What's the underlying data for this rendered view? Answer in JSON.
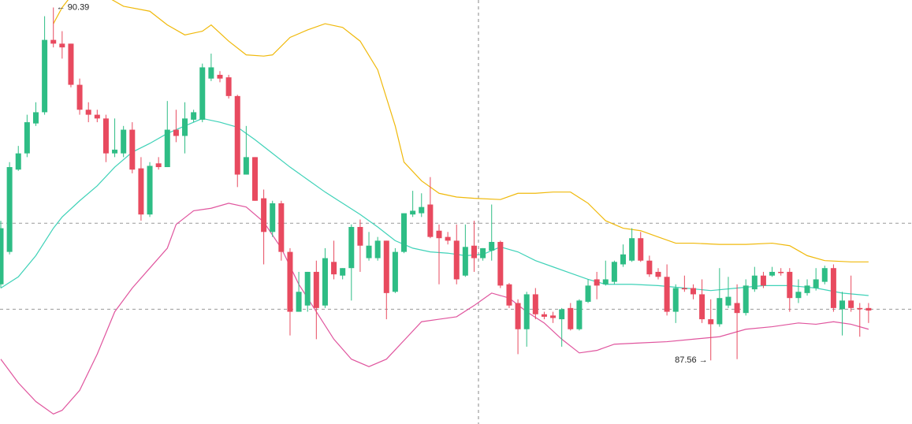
{
  "chart_data": {
    "type": "candlestick",
    "ylim": [
      87.05,
      90.45
    ],
    "up_color": "#2ebd85",
    "down_color": "#e84a5f",
    "open": [
      88.17,
      88.43,
      89.09,
      89.22,
      89.46,
      89.55,
      90.13,
      90.1,
      90.1,
      89.77,
      89.57,
      89.53,
      89.5,
      89.22,
      89.22,
      89.41,
      89.1,
      88.73,
      89.14,
      89.11,
      89.41,
      89.36,
      89.49,
      89.49,
      89.82,
      89.85,
      89.83,
      89.68,
      89.05,
      89.19,
      88.86,
      88.59,
      88.82,
      88.43,
      87.95,
      88.0,
      88.27,
      88.0,
      88.35,
      88.24,
      88.3,
      88.63,
      88.38,
      88.38,
      88.52,
      88.11,
      88.43,
      88.73,
      88.74,
      88.81,
      88.6,
      88.55,
      88.52,
      88.24,
      88.48,
      88.38,
      88.44,
      88.51,
      88.17,
      88.02,
      87.81,
      88.09,
      87.93,
      87.92,
      87.89,
      87.98,
      87.81,
      88.03,
      88.21,
      88.17,
      88.19,
      88.33,
      88.36,
      88.54,
      88.36,
      88.27,
      88.23,
      87.95,
      88.14,
      88.14,
      88.09,
      87.89,
      87.85,
      88.0,
      88.02,
      87.94,
      88.13,
      88.24,
      88.24,
      88.27,
      88.27,
      88.06,
      88.1,
      88.14,
      88.19,
      88.3,
      87.97,
      88.04,
      87.98,
      87.98
    ],
    "high": [
      88.68,
      89.15,
      89.28,
      89.53,
      89.63,
      90.32,
      90.39,
      90.2,
      90.1,
      89.82,
      89.63,
      89.57,
      89.53,
      89.5,
      89.44,
      89.47,
      89.19,
      89.15,
      89.19,
      89.64,
      89.57,
      89.63,
      89.57,
      89.94,
      90.02,
      89.88,
      89.85,
      89.69,
      89.44,
      89.19,
      88.93,
      88.84,
      88.84,
      88.46,
      88.27,
      88.27,
      88.36,
      88.46,
      88.52,
      88.3,
      88.65,
      88.69,
      88.59,
      88.55,
      88.52,
      88.46,
      88.74,
      88.92,
      88.9,
      89.03,
      88.65,
      88.59,
      88.65,
      88.65,
      88.68,
      88.46,
      88.81,
      88.52,
      88.18,
      88.05,
      88.11,
      88.14,
      87.95,
      87.95,
      87.98,
      88.02,
      88.05,
      88.21,
      88.27,
      88.36,
      88.36,
      88.49,
      88.62,
      88.59,
      88.4,
      88.3,
      88.33,
      88.17,
      88.24,
      88.17,
      88.21,
      88.05,
      88.3,
      88.23,
      88.17,
      88.21,
      88.31,
      88.27,
      88.31,
      88.3,
      88.3,
      88.21,
      88.21,
      88.3,
      88.32,
      88.33,
      88.11,
      88.24,
      88.02,
      88.02
    ],
    "low": [
      88.14,
      88.41,
      89.08,
      89.19,
      89.44,
      89.53,
      90.07,
      89.98,
      89.75,
      89.53,
      89.47,
      89.47,
      89.15,
      89.19,
      89.19,
      89.06,
      88.68,
      88.71,
      89.09,
      89.11,
      89.31,
      89.22,
      89.47,
      89.47,
      89.8,
      89.79,
      89.66,
      88.95,
      89.05,
      88.84,
      88.33,
      88.55,
      88.36,
      87.76,
      87.95,
      87.95,
      87.73,
      87.98,
      88.21,
      88.21,
      88.04,
      88.27,
      88.36,
      88.36,
      87.89,
      88.1,
      88.42,
      88.71,
      88.71,
      88.54,
      88.17,
      88.49,
      88.17,
      88.23,
      88.27,
      88.36,
      88.36,
      88.14,
      87.98,
      87.61,
      87.67,
      87.89,
      87.89,
      87.86,
      87.67,
      87.8,
      87.8,
      88.02,
      88.05,
      88.16,
      88.17,
      88.31,
      88.35,
      88.35,
      88.23,
      88.21,
      87.92,
      87.86,
      88.11,
      88.05,
      87.86,
      87.56,
      87.83,
      87.98,
      87.57,
      87.92,
      88.11,
      88.14,
      88.23,
      88.24,
      87.95,
      88.02,
      88.08,
      88.12,
      88.17,
      87.95,
      87.76,
      87.95,
      87.75,
      87.86
    ],
    "close": [
      88.62,
      89.11,
      89.22,
      89.47,
      89.55,
      90.13,
      90.1,
      90.07,
      89.77,
      89.57,
      89.53,
      89.5,
      89.22,
      89.25,
      89.41,
      89.09,
      88.73,
      89.12,
      89.11,
      89.41,
      89.36,
      89.5,
      89.55,
      89.91,
      89.91,
      89.82,
      89.68,
      89.05,
      89.19,
      88.84,
      88.59,
      88.82,
      88.43,
      87.95,
      88.11,
      88.27,
      87.98,
      88.38,
      88.25,
      88.3,
      88.63,
      88.48,
      88.48,
      88.52,
      88.1,
      88.43,
      88.74,
      88.76,
      88.79,
      88.55,
      88.54,
      88.52,
      88.21,
      88.47,
      88.38,
      88.46,
      88.51,
      88.16,
      88.0,
      87.81,
      88.09,
      87.93,
      87.91,
      87.9,
      87.97,
      87.81,
      88.04,
      88.16,
      88.16,
      88.21,
      88.35,
      88.41,
      88.54,
      88.36,
      88.25,
      88.23,
      87.95,
      88.14,
      88.13,
      88.09,
      87.89,
      87.85,
      88.06,
      88.07,
      87.94,
      88.16,
      88.24,
      88.16,
      88.27,
      88.26,
      88.06,
      88.11,
      88.16,
      88.21,
      88.3,
      87.98,
      88.04,
      87.98,
      87.97,
      87.96
    ],
    "bands": [
      {
        "color": "#f0b90b",
        "x": [
          6,
          7,
          8,
          10,
          12,
          14,
          17,
          19,
          21,
          23,
          24,
          26,
          28,
          30,
          31,
          33,
          35,
          37,
          39,
          41,
          43,
          45,
          46,
          48,
          50,
          52,
          54,
          57,
          59,
          61,
          63,
          65,
          67,
          69,
          71,
          73,
          75,
          77,
          79,
          82,
          85,
          88,
          90,
          92,
          94,
          97,
          99
        ],
        "values": [
          90.26,
          90.39,
          90.48,
          90.51,
          90.48,
          90.4,
          90.36,
          90.25,
          90.17,
          90.2,
          90.25,
          90.12,
          90.01,
          90.0,
          90.01,
          90.15,
          90.21,
          90.26,
          90.23,
          90.12,
          89.89,
          89.44,
          89.15,
          89.0,
          88.9,
          88.87,
          88.86,
          88.85,
          88.9,
          88.9,
          88.91,
          88.91,
          88.82,
          88.68,
          88.62,
          88.6,
          88.55,
          88.5,
          88.5,
          88.49,
          88.49,
          88.5,
          88.48,
          88.4,
          88.36,
          88.35,
          88.35
        ]
      },
      {
        "color": "#3fd2b8",
        "x": [
          0,
          2,
          4,
          6,
          7,
          9,
          11,
          13,
          15,
          17,
          19,
          21,
          23,
          25,
          27,
          29,
          31,
          33,
          35,
          37,
          39,
          41,
          43,
          45,
          47,
          49,
          51,
          53,
          55,
          57,
          59,
          61,
          63,
          65,
          67,
          69,
          72,
          75,
          78,
          81,
          84,
          87,
          90,
          93,
          96,
          99
        ],
        "values": [
          88.14,
          88.23,
          88.4,
          88.62,
          88.71,
          88.84,
          88.96,
          89.11,
          89.23,
          89.3,
          89.38,
          89.44,
          89.5,
          89.47,
          89.43,
          89.33,
          89.22,
          89.11,
          89.01,
          88.91,
          88.82,
          88.73,
          88.63,
          88.52,
          88.46,
          88.43,
          88.42,
          88.4,
          88.41,
          88.47,
          88.43,
          88.36,
          88.31,
          88.26,
          88.21,
          88.17,
          88.17,
          88.16,
          88.14,
          88.12,
          88.14,
          88.16,
          88.16,
          88.14,
          88.1,
          88.08
        ]
      },
      {
        "color": "#e0559e",
        "x": [
          0,
          2,
          4,
          6,
          7,
          9,
          11,
          13,
          15,
          17,
          19,
          20,
          22,
          24,
          26,
          28,
          30,
          32,
          34,
          36,
          38,
          40,
          42,
          44,
          46,
          48,
          50,
          52,
          54,
          56,
          58,
          60,
          62,
          64,
          66,
          68,
          70,
          73,
          76,
          79,
          82,
          85,
          88,
          91,
          93,
          95,
          97,
          99
        ],
        "values": [
          87.57,
          87.38,
          87.23,
          87.13,
          87.16,
          87.32,
          87.61,
          87.95,
          88.14,
          88.3,
          88.46,
          88.65,
          88.76,
          88.78,
          88.82,
          88.79,
          88.67,
          88.46,
          88.17,
          87.95,
          87.73,
          87.57,
          87.51,
          87.57,
          87.72,
          87.87,
          87.89,
          87.91,
          88.0,
          88.1,
          88.06,
          87.95,
          87.86,
          87.73,
          87.62,
          87.64,
          87.69,
          87.7,
          87.71,
          87.73,
          87.75,
          87.81,
          87.83,
          87.86,
          87.85,
          87.87,
          87.85,
          87.81
        ]
      }
    ],
    "price_lines": [
      88.66,
      87.97
    ],
    "annotations": [
      {
        "label": "← 90.39",
        "value": 90.39
      },
      {
        "label": "87.56 →",
        "value": 87.56
      }
    ]
  }
}
